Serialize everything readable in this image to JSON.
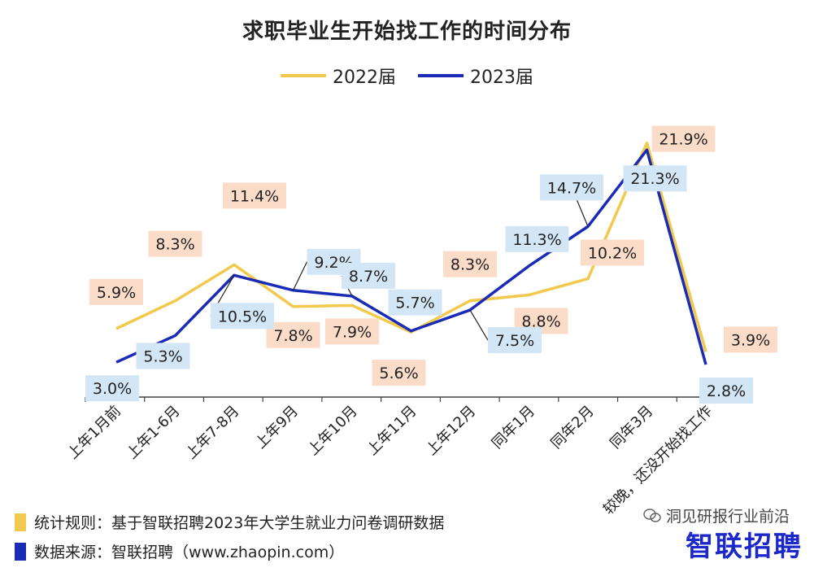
{
  "title": "求职毕业生开始找工作的时间分布",
  "footer": {
    "rule": "统计规则：基于智联招聘2023年大学生就业力问卷调研数据",
    "source": "数据来源：智联招聘（www.zhaopin.com）"
  },
  "brand": "智联招聘",
  "wechat_account": "洞见研报行业前沿",
  "colors": {
    "s2022": "#f2c94c",
    "s2023": "#1a2bb5",
    "label2022_bg": "#fbdcc8",
    "label2023_bg": "#d3e6f5"
  },
  "chart_data": {
    "type": "line",
    "title": "求职毕业生开始找工作的时间分布",
    "categories": [
      "上年1月前",
      "上年1-6月",
      "上年7-8月",
      "上年9月",
      "上年10月",
      "上年11月",
      "上年12月",
      "同年1月",
      "同年2月",
      "同年3月",
      "较晚，还没开始找工作"
    ],
    "series": [
      {
        "name": "2022届",
        "values": [
          5.9,
          8.3,
          11.4,
          7.8,
          7.9,
          5.6,
          8.3,
          8.8,
          10.2,
          21.9,
          3.9
        ],
        "labels": [
          "5.9%",
          "8.3%",
          "11.4%",
          "7.8%",
          "7.9%",
          "5.6%",
          "8.3%",
          "8.8%",
          "10.2%",
          "21.9%",
          "3.9%"
        ]
      },
      {
        "name": "2023届",
        "values": [
          3.0,
          5.3,
          10.5,
          9.2,
          8.7,
          5.7,
          7.5,
          11.3,
          14.7,
          21.3,
          2.8
        ],
        "labels": [
          "3.0%",
          "5.3%",
          "10.5%",
          "9.2%",
          "8.7%",
          "5.7%",
          "7.5%",
          "11.3%",
          "14.7%",
          "21.3%",
          "2.8%"
        ]
      }
    ],
    "ylim": [
      0,
      23
    ],
    "legend": "top-center",
    "grid": false
  }
}
